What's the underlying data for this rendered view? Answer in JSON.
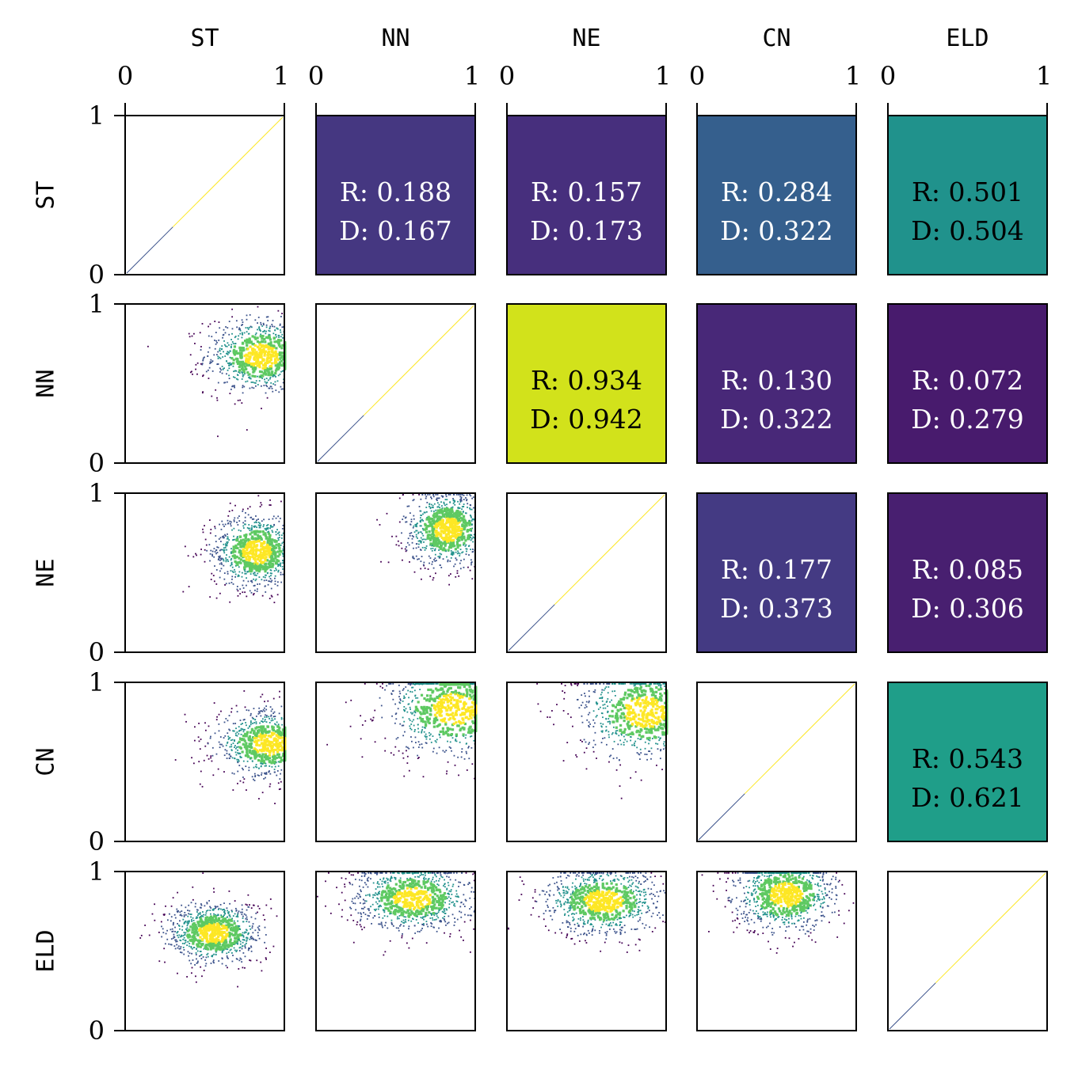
{
  "chart_data": {
    "type": "heatmap",
    "subtype": "pair-plot matrix (lower: 2D density scatter, diagonal: identity line, upper: correlation tiles colored by R)",
    "variables": [
      "ST",
      "NN",
      "NE",
      "CN",
      "ELD"
    ],
    "axis_range": [
      0,
      1
    ],
    "x_ticks": [
      "0",
      "1"
    ],
    "y_ticks": [
      "0",
      "1"
    ],
    "grid": false,
    "colormap": "viridis",
    "r_label": "R:",
    "d_label": "D:",
    "upper_cells": [
      {
        "row": "ST",
        "col": "NN",
        "R": "0.188",
        "D": "0.167",
        "color": "#453781",
        "text_color": "#ffffff"
      },
      {
        "row": "ST",
        "col": "NE",
        "R": "0.157",
        "D": "0.173",
        "color": "#472f7d",
        "text_color": "#ffffff"
      },
      {
        "row": "ST",
        "col": "CN",
        "R": "0.284",
        "D": "0.322",
        "color": "#355f8d",
        "text_color": "#ffffff"
      },
      {
        "row": "ST",
        "col": "ELD",
        "R": "0.501",
        "D": "0.504",
        "color": "#20928c",
        "text_color": "#000000"
      },
      {
        "row": "NN",
        "col": "NE",
        "R": "0.934",
        "D": "0.942",
        "color": "#d2e21b",
        "text_color": "#000000"
      },
      {
        "row": "NN",
        "col": "CN",
        "R": "0.130",
        "D": "0.322",
        "color": "#482878",
        "text_color": "#ffffff"
      },
      {
        "row": "NN",
        "col": "ELD",
        "R": "0.072",
        "D": "0.279",
        "color": "#481b6d",
        "text_color": "#ffffff"
      },
      {
        "row": "NE",
        "col": "CN",
        "R": "0.177",
        "D": "0.373",
        "color": "#443a83",
        "text_color": "#ffffff"
      },
      {
        "row": "NE",
        "col": "ELD",
        "R": "0.085",
        "D": "0.306",
        "color": "#481f70",
        "text_color": "#ffffff"
      },
      {
        "row": "CN",
        "col": "ELD",
        "R": "0.543",
        "D": "0.621",
        "color": "#1f9e89",
        "text_color": "#000000"
      }
    ],
    "lower_cells": [
      {
        "row": "NN",
        "col": "ST",
        "center": [
          0.85,
          0.68
        ],
        "spread": [
          0.32,
          0.22
        ]
      },
      {
        "row": "NE",
        "col": "ST",
        "center": [
          0.82,
          0.64
        ],
        "spread": [
          0.26,
          0.22
        ]
      },
      {
        "row": "NE",
        "col": "NN",
        "center": [
          0.82,
          0.78
        ],
        "spread": [
          0.25,
          0.22
        ]
      },
      {
        "row": "CN",
        "col": "ST",
        "center": [
          0.9,
          0.62
        ],
        "spread": [
          0.32,
          0.2
        ]
      },
      {
        "row": "CN",
        "col": "NN",
        "center": [
          0.86,
          0.84
        ],
        "spread": [
          0.4,
          0.28
        ]
      },
      {
        "row": "CN",
        "col": "NE",
        "center": [
          0.86,
          0.82
        ],
        "spread": [
          0.38,
          0.28
        ]
      },
      {
        "row": "ELD",
        "col": "ST",
        "center": [
          0.55,
          0.62
        ],
        "spread": [
          0.28,
          0.18
        ]
      },
      {
        "row": "ELD",
        "col": "NN",
        "center": [
          0.6,
          0.84
        ],
        "spread": [
          0.35,
          0.2
        ]
      },
      {
        "row": "ELD",
        "col": "NE",
        "center": [
          0.6,
          0.82
        ],
        "spread": [
          0.35,
          0.2
        ]
      },
      {
        "row": "ELD",
        "col": "CN",
        "center": [
          0.55,
          0.86
        ],
        "spread": [
          0.3,
          0.22
        ]
      }
    ],
    "density_colors": [
      "#440154",
      "#3b528b",
      "#21918c",
      "#5ec962",
      "#fde725"
    ]
  }
}
